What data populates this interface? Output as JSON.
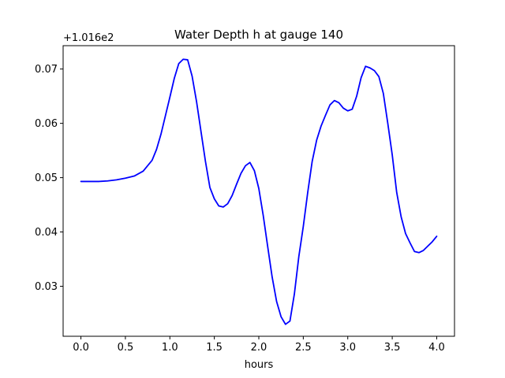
{
  "chart_data": {
    "type": "line",
    "title": "Water Depth h at gauge 140",
    "xlabel": "hours",
    "ylabel": "",
    "offset_label": "+1.016e2",
    "xlim": [
      -0.2,
      4.2
    ],
    "ylim": [
      0.0208,
      0.0743
    ],
    "x_ticks": [
      0.0,
      0.5,
      1.0,
      1.5,
      2.0,
      2.5,
      3.0,
      3.5,
      4.0
    ],
    "x_tick_labels": [
      "0.0",
      "0.5",
      "1.0",
      "1.5",
      "2.0",
      "2.5",
      "3.0",
      "3.5",
      "4.0"
    ],
    "y_ticks": [
      0.03,
      0.04,
      0.05,
      0.06,
      0.07
    ],
    "y_tick_labels": [
      "0.03",
      "0.04",
      "0.05",
      "0.06",
      "0.07"
    ],
    "grid": false,
    "series": [
      {
        "color": "#0000ff",
        "x": [
          0.0,
          0.1,
          0.2,
          0.3,
          0.4,
          0.5,
          0.6,
          0.7,
          0.8,
          0.85,
          0.9,
          0.95,
          1.0,
          1.05,
          1.1,
          1.15,
          1.2,
          1.25,
          1.3,
          1.35,
          1.4,
          1.45,
          1.5,
          1.55,
          1.6,
          1.65,
          1.7,
          1.75,
          1.8,
          1.85,
          1.9,
          1.95,
          2.0,
          2.05,
          2.1,
          2.15,
          2.2,
          2.25,
          2.3,
          2.35,
          2.4,
          2.45,
          2.5,
          2.55,
          2.6,
          2.65,
          2.7,
          2.75,
          2.8,
          2.85,
          2.9,
          2.95,
          3.0,
          3.05,
          3.1,
          3.15,
          3.2,
          3.25,
          3.3,
          3.35,
          3.4,
          3.45,
          3.5,
          3.55,
          3.6,
          3.65,
          3.7,
          3.75,
          3.8,
          3.85,
          3.9,
          3.95,
          4.0
        ],
        "y": [
          0.0493,
          0.0493,
          0.0493,
          0.0494,
          0.0496,
          0.0499,
          0.0503,
          0.0512,
          0.0532,
          0.0552,
          0.058,
          0.0614,
          0.0648,
          0.0683,
          0.071,
          0.0718,
          0.0717,
          0.0687,
          0.064,
          0.0585,
          0.053,
          0.0482,
          0.0461,
          0.0448,
          0.0446,
          0.0452,
          0.0467,
          0.0488,
          0.0508,
          0.0522,
          0.0528,
          0.0513,
          0.048,
          0.043,
          0.0373,
          0.0317,
          0.0272,
          0.0244,
          0.023,
          0.0236,
          0.0286,
          0.0355,
          0.041,
          0.0473,
          0.053,
          0.0569,
          0.0595,
          0.0615,
          0.0634,
          0.0642,
          0.0638,
          0.0628,
          0.0623,
          0.0626,
          0.065,
          0.0684,
          0.0705,
          0.0702,
          0.0697,
          0.0686,
          0.0655,
          0.06,
          0.0542,
          0.0473,
          0.0428,
          0.0397,
          0.038,
          0.0364,
          0.0362,
          0.0366,
          0.0374,
          0.0382,
          0.0392
        ]
      }
    ]
  }
}
